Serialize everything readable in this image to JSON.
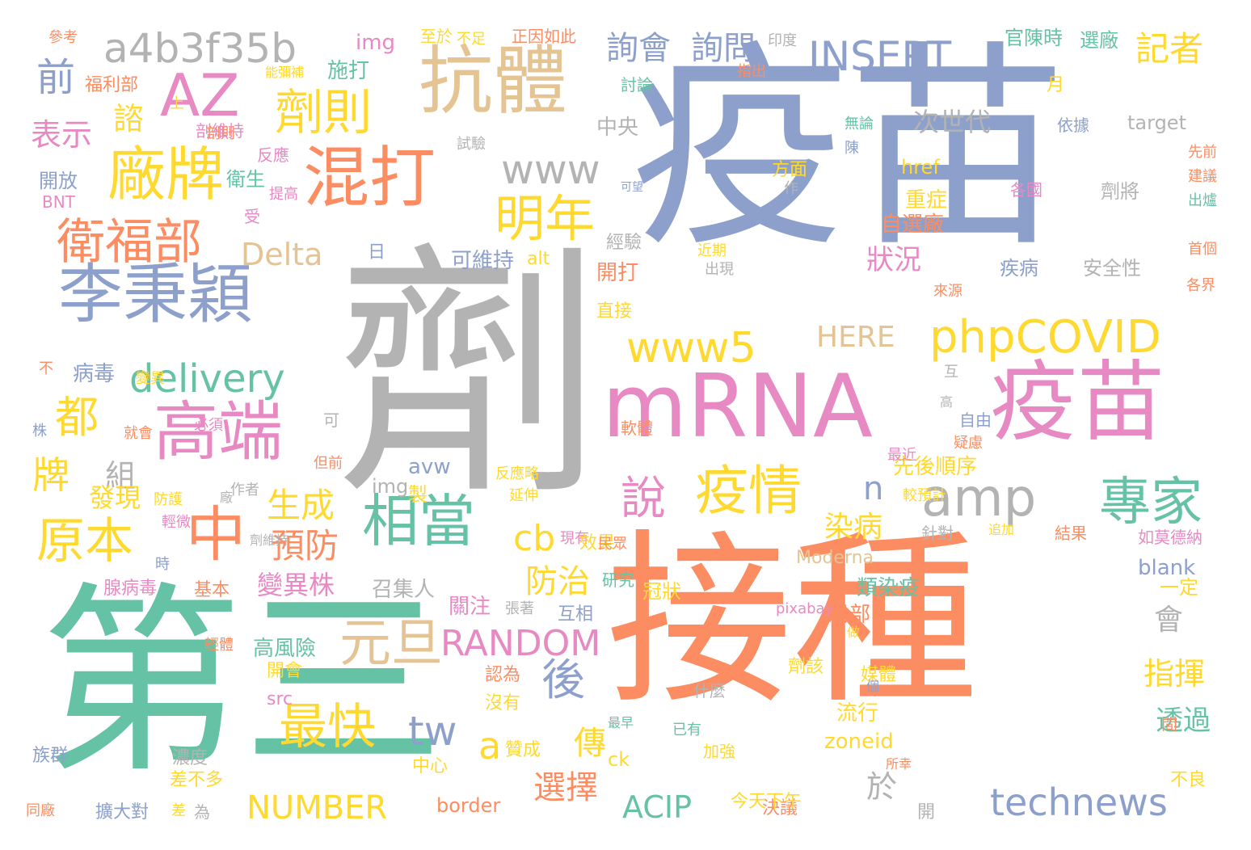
{
  "colors": {
    "blue": "#8DA0CB",
    "gray": "#B3B3B3",
    "orange": "#FC8D62",
    "green": "#66C2A5",
    "pink": "#E78AC3",
    "yellow": "#FFD92F",
    "lime": "#A6D854",
    "tan": "#E5C494"
  },
  "words": [
    "疫苗",
    "劑",
    "接種",
    "第三",
    "mRNA",
    "疫苗",
    "李秉穎",
    "抗體",
    "混打",
    "AZ",
    "a4b3f35b",
    "高端",
    "廠牌",
    "INSERT",
    "衛福部",
    "中",
    "相當",
    "專家",
    "amp",
    "疫情",
    "phpCOVID",
    "www5",
    "delivery",
    "劑則",
    "明年",
    "詢會",
    "詢問",
    "元旦",
    "RANDOM",
    "technews",
    "前",
    "表示",
    "諮",
    "都",
    "牌",
    "原本",
    "後",
    "最快",
    "tw",
    "a",
    "NUMBER",
    "ACIP",
    "說",
    "生成",
    "預防",
    "組",
    "發現",
    "狀況",
    "染病",
    "指揮",
    "cb",
    "防治",
    "變異株",
    "會",
    "記者",
    "www",
    "Delta",
    "HERE",
    "次世代",
    "n",
    "選擇",
    "傳",
    "於",
    "透過",
    "官陳時",
    "選廠",
    "target",
    "各國",
    "劑將",
    "疾病",
    "安全性",
    "重症",
    "自選廠",
    "剖維持",
    "依據",
    "中央",
    "可維持",
    "開打",
    "直接",
    "高風險",
    "類染疫",
    "局部",
    "流行",
    "zoneid",
    "blank",
    "Moderna",
    "如莫德納",
    "一定",
    "互相",
    "先後順序",
    "img",
    "avw",
    "href",
    "img",
    "src",
    "border",
    "ck",
    "關注",
    "召集人",
    "冠狀",
    "針對",
    "結果",
    "研究",
    "基本",
    "腺病毒",
    "病毒",
    "開放",
    "BNT",
    "福利部",
    "衛生",
    "參考",
    "至於",
    "正因如此",
    "印度",
    "施打",
    "不足",
    "能彌補",
    "指出",
    "月",
    "討論",
    "無論",
    "陳",
    "方面",
    "作",
    "可望",
    "提高",
    "受",
    "近期",
    "出現",
    "來源",
    "反應",
    "試驗",
    "上",
    "經驗",
    "日",
    "alt",
    "先前",
    "建議",
    "出爐",
    "首個",
    "各界",
    "不",
    "株",
    "就會",
    "必須",
    "但前",
    "作者",
    "變異",
    "防護",
    "輕微",
    "時",
    "間",
    "疑慮",
    "自由",
    "互",
    "高",
    "較預計",
    "最近",
    "做",
    "pixabay",
    "認為",
    "沒有",
    "贊成",
    "已有",
    "加強",
    "所幸",
    "濃度",
    "中心",
    "差不多",
    "差",
    "為",
    "同廠",
    "擴大對",
    "族群",
    "媒體",
    "開會",
    "劑該",
    "不良",
    "決議",
    "今天下午",
    "開",
    "反應略",
    "延伸",
    "個",
    "最早",
    "現有",
    "效果",
    "追加",
    "張著",
    "民眾",
    "軟體",
    "製",
    "什麼",
    "可",
    "輕體",
    "剖則",
    "廠",
    "劑維持"
  ]
}
